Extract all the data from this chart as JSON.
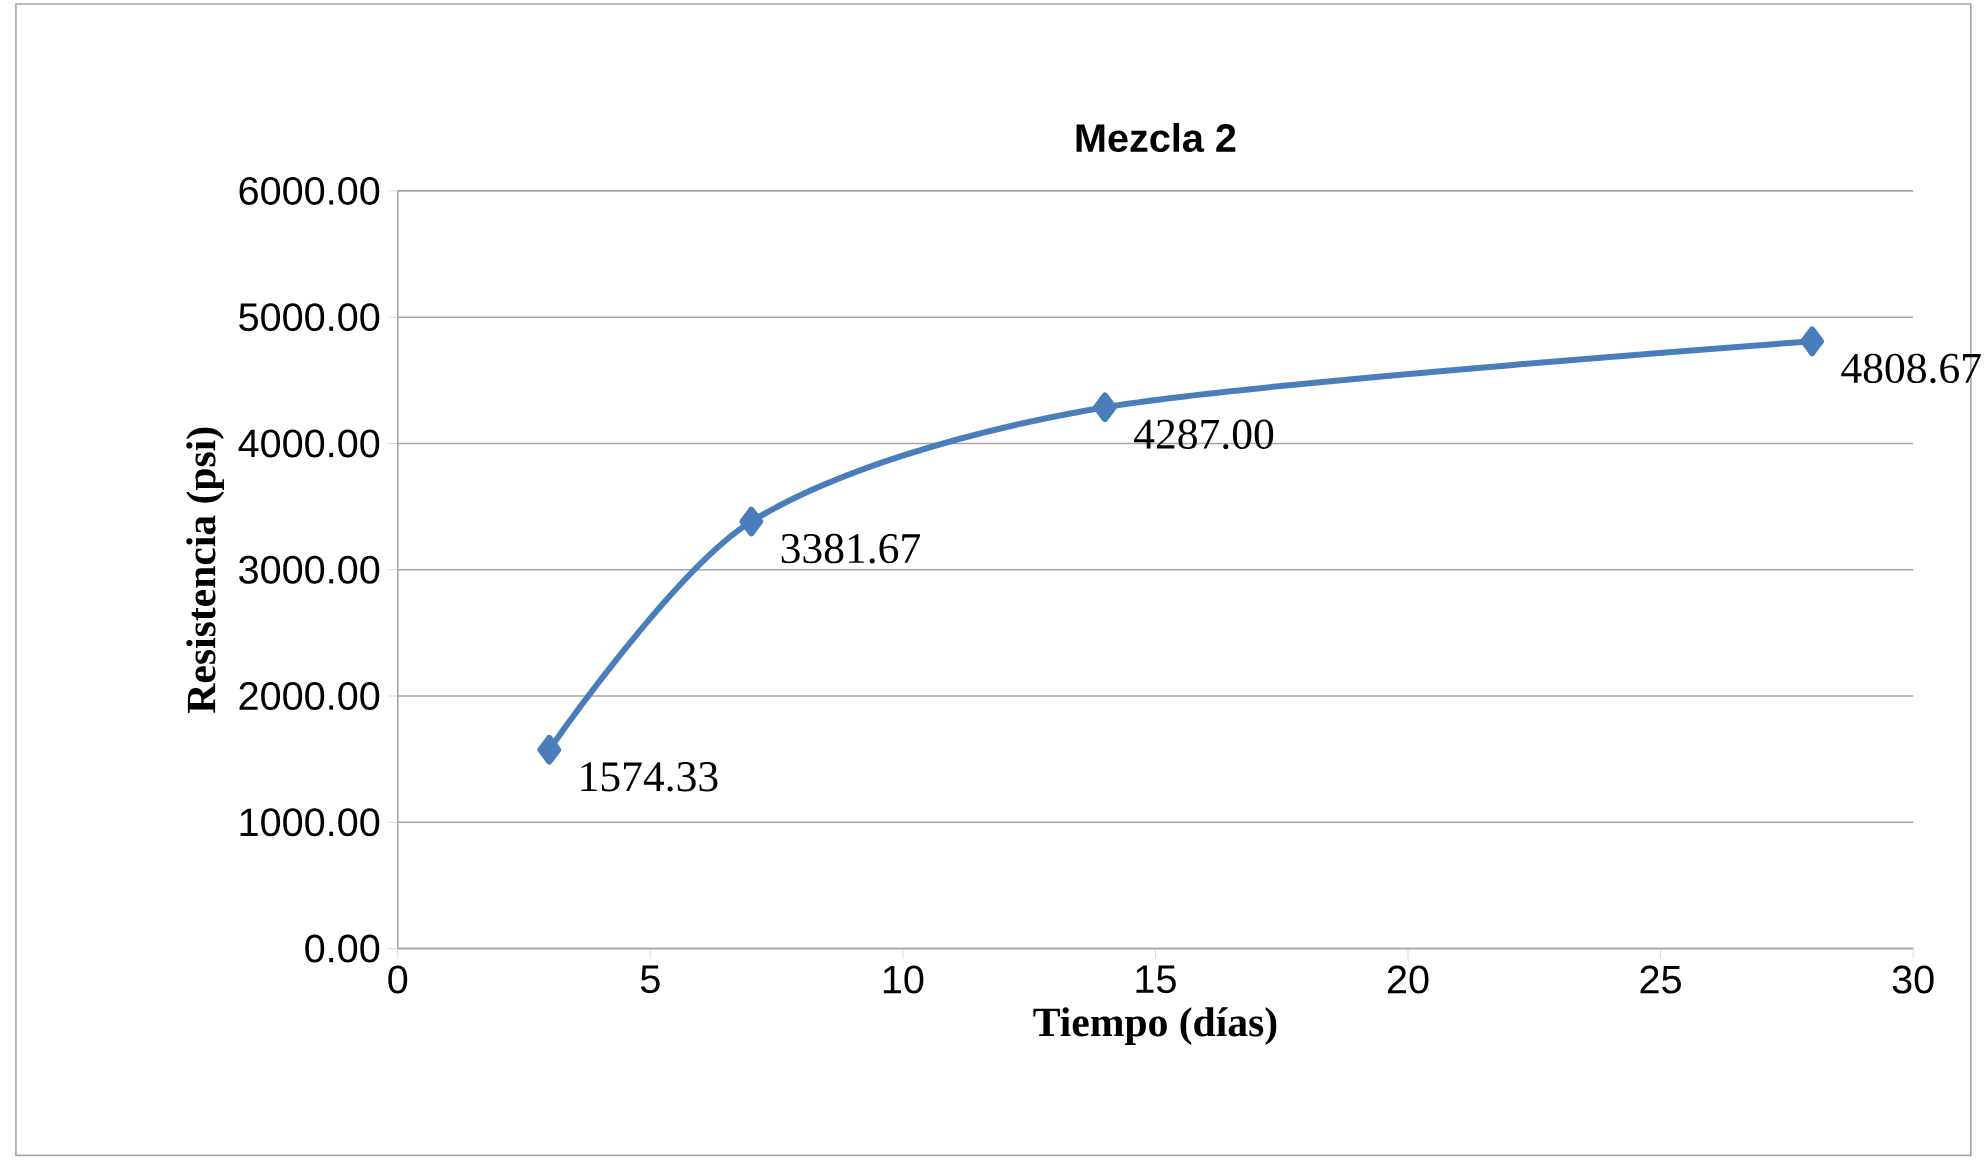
{
  "chart_data": {
    "type": "line",
    "title": "Mezcla 2",
    "xlabel": "Tiempo (días)",
    "ylabel": "Resistencia (psi)",
    "x": [
      3,
      7,
      14,
      28
    ],
    "series": [
      {
        "color": "#4a7ebb",
        "values": [
          1574.33,
          3381.67,
          4287.0,
          4808.67
        ],
        "value_labels": [
          "1574.33",
          "3381.67",
          "4287.00",
          "4808.67"
        ]
      }
    ],
    "xlim": [
      0,
      30
    ],
    "xticks": [
      0,
      5,
      10,
      15,
      20,
      25,
      30
    ],
    "ylim": [
      0,
      6000
    ],
    "yticks": [
      {
        "value": 0,
        "label": "0.00"
      },
      {
        "value": 1000,
        "label": "1000.00"
      },
      {
        "value": 2000,
        "label": "2000.00"
      },
      {
        "value": 3000,
        "label": "3000.00"
      },
      {
        "value": 4000,
        "label": "4000.00"
      },
      {
        "value": 5000,
        "label": "5000.00"
      },
      {
        "value": 6000,
        "label": "6000.00"
      }
    ],
    "grid": "y",
    "marker": "diamond",
    "line_style": "solid"
  }
}
